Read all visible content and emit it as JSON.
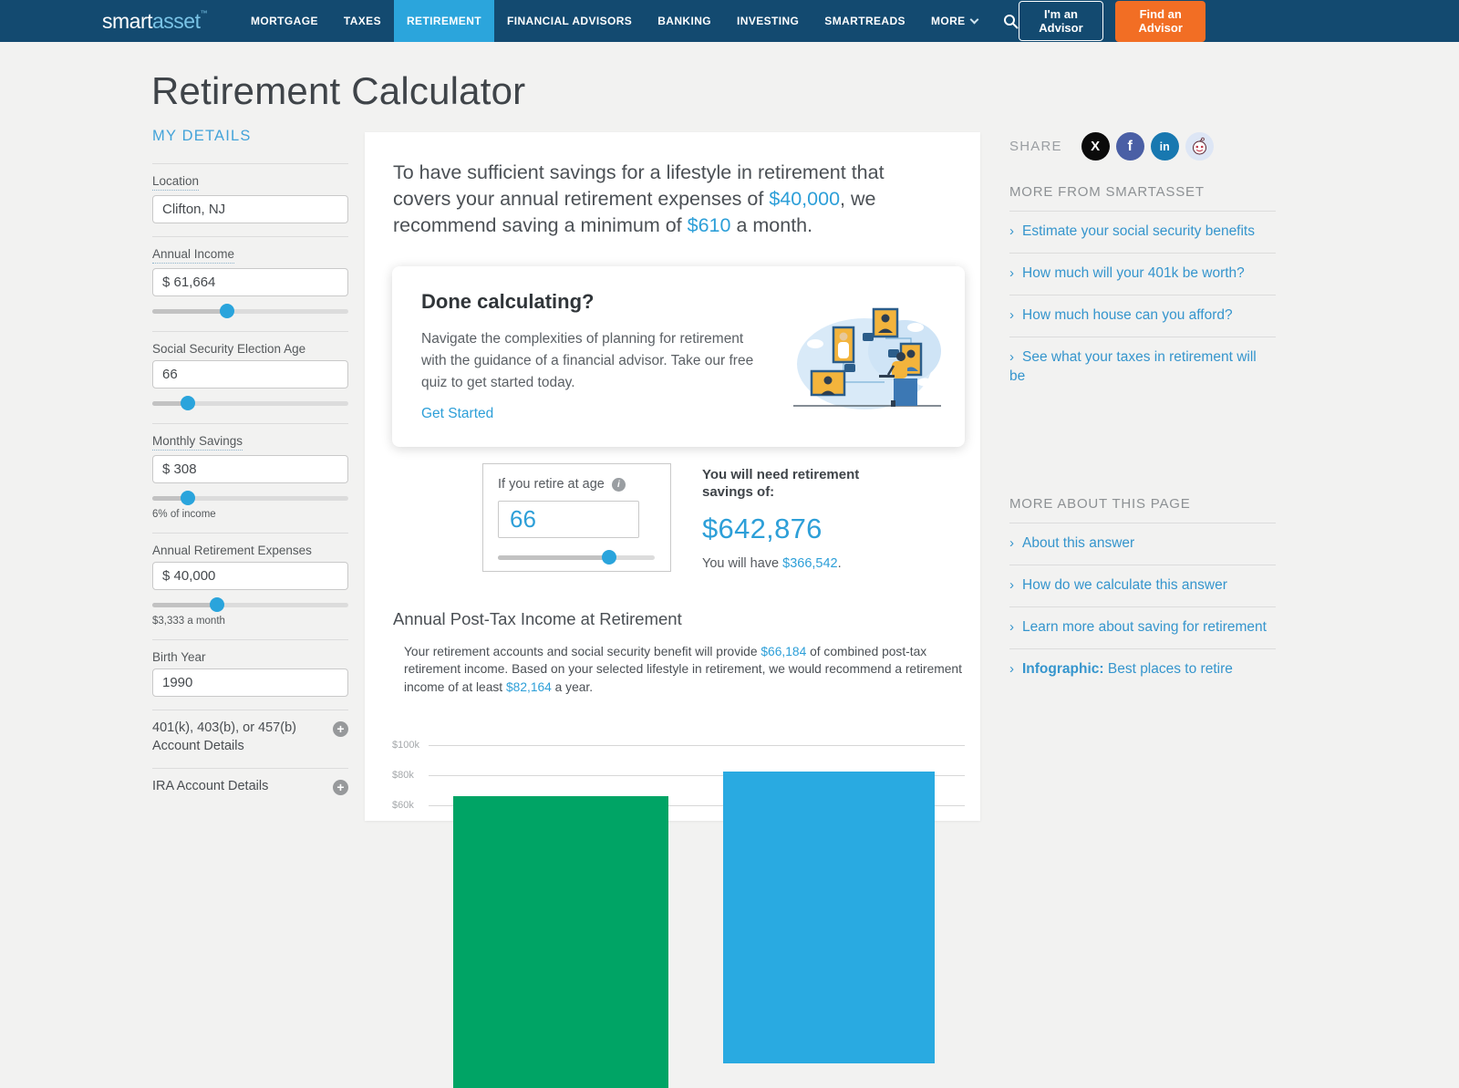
{
  "colors": {
    "nav_navy": "#134a70",
    "nav_active_blue": "#2ba5dc",
    "cta_orange": "#f26e24",
    "link_blue": "#3595cd",
    "amount_blue": "#2d9fd8",
    "bar_green": "#00a465",
    "bar_blue": "#29aae1"
  },
  "nav": {
    "logo_part1": "smart",
    "logo_part2": "asset",
    "logo_tm": "™",
    "items": [
      {
        "label": "MORTGAGE"
      },
      {
        "label": "TAXES"
      },
      {
        "label": "RETIREMENT",
        "active": true
      },
      {
        "label": "FINANCIAL ADVISORS"
      },
      {
        "label": "BANKING"
      },
      {
        "label": "INVESTING"
      },
      {
        "label": "SMARTREADS"
      },
      {
        "label": "MORE"
      }
    ],
    "im_advisor": "I'm an Advisor",
    "find_advisor": "Find an Advisor"
  },
  "page": {
    "title": "Retirement Calculator"
  },
  "my_details": {
    "heading": "MY DETAILS",
    "fields": [
      {
        "label": "Location",
        "value": "Clifton, NJ"
      },
      {
        "label": "Annual Income",
        "value": "$ 61,664",
        "slider_pct": "38%"
      },
      {
        "label": "Social Security Election Age",
        "value": "66",
        "slider_pct": "18%"
      },
      {
        "label": "Monthly Savings",
        "value": "$ 308",
        "slider_pct": "18%",
        "note": "6% of income"
      },
      {
        "label": "Annual Retirement Expenses",
        "value": "$ 40,000",
        "slider_pct": "33%",
        "note": "$3,333 a month"
      },
      {
        "label": "Birth Year",
        "value": "1990"
      }
    ],
    "expanders": [
      "401(k), 403(b), or 457(b) Account Details",
      "IRA Account Details"
    ]
  },
  "main": {
    "intro": {
      "part1": "To have sufficient savings for a lifestyle in retirement that covers your annual retirement expenses of ",
      "amount1": "$40,000",
      "part2": ", we recommend saving a minimum of ",
      "amount2": "$610",
      "part3": " a month."
    },
    "done_card": {
      "title": "Done calculating?",
      "body": "Navigate the complexities of planning for retirement with the guidance of a financial advisor. Take our free quiz to get started today.",
      "link": "Get Started"
    },
    "retire_widget": {
      "label": "If you retire at age",
      "value": "66",
      "slider_pct": "71%"
    },
    "savings": {
      "need_label": "You will need retirement savings of:",
      "amount": "$642,876",
      "have_prefix": "You will have ",
      "have_amount": "$366,542",
      "have_suffix": "."
    },
    "posttax": {
      "part1": "Your retirement accounts and social security benefit will provide ",
      "amount1": "$66,184",
      "part2": " of combined post-tax retirement income. Based on your selected lifestyle in retirement, we would recommend a retirement income of at least ",
      "amount2": "$82,164",
      "part3": " a year."
    }
  },
  "share": {
    "label": "SHARE",
    "icons": [
      "x-twitter",
      "facebook",
      "linkedin",
      "reddit"
    ],
    "fb_glyph": "f",
    "x_glyph": "X",
    "li_glyph": "in"
  },
  "more_from": {
    "heading": "MORE FROM SMARTASSET",
    "links": [
      "Estimate your social security benefits",
      "How much will your 401k be worth?",
      "How much house can you afford?",
      "See what your taxes in retirement will be"
    ]
  },
  "more_about": {
    "heading": "MORE ABOUT THIS PAGE",
    "links": [
      {
        "text": "About this answer"
      },
      {
        "text": "How do we calculate this answer"
      },
      {
        "text": "Learn more about saving for retirement"
      },
      {
        "bold": "Infographic:",
        "text": " Best places to retire"
      }
    ]
  },
  "chart_data": {
    "type": "bar",
    "title": "Annual Post-Tax Income at Retirement",
    "categories": [
      "",
      ""
    ],
    "bars": [
      {
        "name": "combined-post-tax-income",
        "value": 66184,
        "color": "#00a465"
      },
      {
        "name": "recommended-retirement-income",
        "value": 82164,
        "color": "#29aae1"
      }
    ],
    "yticks": [
      "$100k",
      "$80k",
      "$60k"
    ],
    "ytick_values": [
      100000,
      80000,
      60000
    ],
    "ylabel": "",
    "xlabel": "",
    "grid": true,
    "legend": false,
    "note_layout": "chart clipped at bottom edge of viewport"
  }
}
